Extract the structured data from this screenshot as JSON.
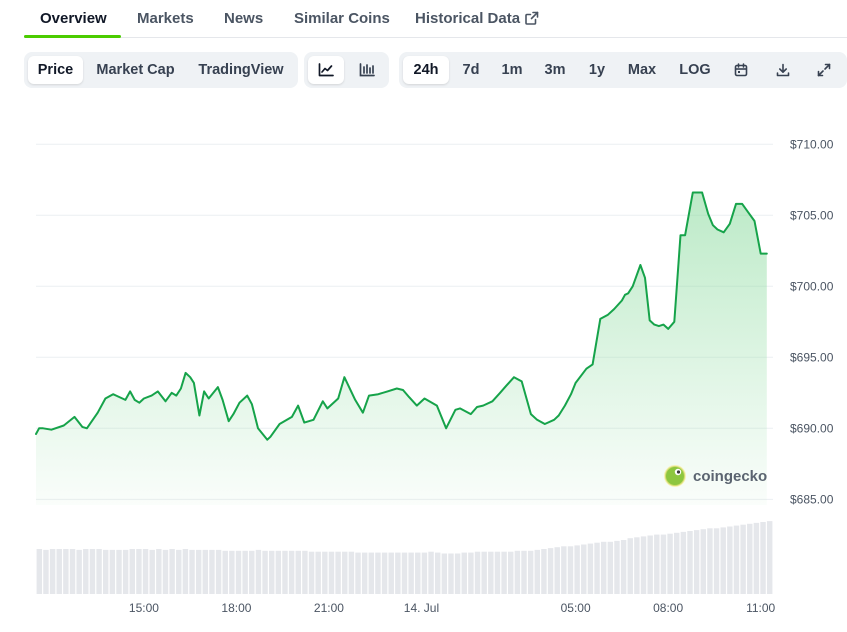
{
  "tabs": {
    "overview": "Overview",
    "markets": "Markets",
    "news": "News",
    "similar_coins": "Similar Coins",
    "historical_data": "Historical Data"
  },
  "toolbar": {
    "price": "Price",
    "market_cap": "Market Cap",
    "trading_view": "TradingView",
    "ranges": [
      "24h",
      "7d",
      "1m",
      "3m",
      "1y",
      "Max"
    ],
    "log": "LOG",
    "selected_range": "24h",
    "selected_view": "Price",
    "selected_chart_type": "line"
  },
  "icons": {
    "external": "external-link-icon",
    "line_chart": "line-chart-icon",
    "candlestick": "candlestick-icon",
    "calendar": "calendar-icon",
    "download": "download-icon",
    "fullscreen": "fullscreen-icon",
    "brand_logo": "coingecko-logo-icon"
  },
  "watermark": "coingecko",
  "colors": {
    "line": "#16a34a",
    "fill_top": "#86d99a",
    "accent_underline": "#4bcc00",
    "volume_bar": "#e5e7eb"
  },
  "chart_data": {
    "type": "area",
    "x_axis": {
      "type": "time",
      "tick_labels": [
        "15:00",
        "18:00",
        "21:00",
        "14. Jul",
        "05:00",
        "08:00",
        "11:00"
      ],
      "tick_hours": [
        15,
        18,
        21,
        24,
        29,
        32,
        35
      ],
      "range_hours": [
        11.5,
        35.4
      ]
    },
    "y_axis": {
      "tick_labels": [
        "$710.00",
        "$705.00",
        "$700.00",
        "$695.00",
        "$690.00",
        "$685.00"
      ],
      "tick_values": [
        710,
        705,
        700,
        695,
        690,
        685
      ],
      "ylim": [
        684.6,
        710.3
      ]
    },
    "grid": true,
    "series": [
      {
        "x": [
          11.5,
          11.6,
          11.73,
          12.0,
          12.4,
          12.75,
          13.0,
          13.15,
          13.5,
          13.75,
          14.0,
          14.1,
          14.4,
          14.55,
          14.7,
          14.85,
          15.0,
          15.25,
          15.45,
          15.7,
          15.9,
          16.05,
          16.2,
          16.35,
          16.5,
          16.62,
          16.8,
          16.95,
          17.1,
          17.4,
          17.55,
          17.75,
          17.9,
          18.1,
          18.35,
          18.5,
          18.7,
          19.0,
          19.1,
          19.4,
          19.8,
          20.0,
          20.2,
          20.5,
          20.8,
          20.95,
          21.3,
          21.5,
          21.85,
          22.1,
          22.3,
          22.6,
          22.9,
          23.2,
          23.4,
          23.6,
          23.85,
          24.1,
          24.5,
          24.8,
          25.1,
          25.25,
          25.6,
          25.8,
          26.0,
          26.3,
          26.55,
          26.75,
          27.0,
          27.25,
          27.55,
          27.75,
          28.0,
          28.1,
          28.3,
          28.45,
          28.65,
          28.85,
          29.0,
          29.35,
          29.55,
          29.8,
          30.05,
          30.25,
          30.5,
          30.6,
          30.7,
          30.85,
          31.1,
          31.25,
          31.4,
          31.55,
          31.7,
          31.85,
          32.0,
          32.2,
          32.4,
          32.55,
          32.8,
          33.1,
          33.3,
          33.45,
          33.6,
          33.8,
          34.0,
          34.2,
          34.4,
          34.6,
          34.8,
          35.0,
          35.2
        ],
        "y": [
          689.6,
          690.0,
          690.0,
          689.9,
          690.2,
          690.8,
          690.1,
          690.0,
          691.1,
          692.1,
          692.4,
          692.3,
          692.0,
          692.6,
          692.0,
          691.8,
          692.1,
          692.3,
          692.6,
          691.9,
          692.5,
          692.3,
          692.8,
          693.9,
          693.6,
          693.2,
          690.9,
          692.6,
          692.1,
          692.9,
          692.0,
          690.5,
          691.0,
          691.8,
          692.3,
          691.7,
          690.0,
          689.2,
          689.4,
          690.3,
          690.8,
          691.6,
          690.4,
          690.6,
          691.9,
          691.4,
          692.1,
          693.6,
          692.0,
          691.1,
          692.3,
          692.4,
          692.6,
          692.8,
          692.7,
          692.2,
          691.6,
          692.1,
          691.6,
          690.0,
          691.3,
          691.4,
          691.0,
          691.5,
          691.6,
          691.9,
          692.5,
          693.0,
          693.6,
          693.3,
          691.0,
          690.6,
          690.3,
          690.4,
          690.6,
          690.9,
          691.6,
          692.4,
          693.2,
          694.2,
          694.5,
          697.7,
          698.0,
          698.4,
          699.0,
          699.4,
          699.5,
          700.0,
          701.5,
          700.6,
          697.6,
          697.3,
          697.2,
          697.3,
          697.0,
          697.5,
          703.6,
          703.6,
          706.6,
          706.6,
          705.1,
          704.3,
          704.0,
          703.8,
          704.4,
          705.8,
          705.8,
          705.2,
          704.6,
          702.3,
          702.3
        ],
        "volume": [
          0.5,
          0.49,
          0.5,
          0.5,
          0.5,
          0.5,
          0.49,
          0.5,
          0.5,
          0.5,
          0.49,
          0.49,
          0.49,
          0.49,
          0.5,
          0.5,
          0.5,
          0.49,
          0.5,
          0.49,
          0.5,
          0.49,
          0.5,
          0.49,
          0.49,
          0.49,
          0.49,
          0.49,
          0.48,
          0.48,
          0.48,
          0.48,
          0.48,
          0.49,
          0.48,
          0.48,
          0.48,
          0.48,
          0.48,
          0.48,
          0.48,
          0.47,
          0.47,
          0.47,
          0.47,
          0.47,
          0.47,
          0.47,
          0.46,
          0.46,
          0.46,
          0.46,
          0.46,
          0.46,
          0.46,
          0.46,
          0.46,
          0.46,
          0.46,
          0.47,
          0.46,
          0.45,
          0.45,
          0.45,
          0.46,
          0.46,
          0.47,
          0.47,
          0.47,
          0.47,
          0.47,
          0.47,
          0.48,
          0.48,
          0.48,
          0.49,
          0.5,
          0.51,
          0.52,
          0.53,
          0.53,
          0.54,
          0.55,
          0.56,
          0.57,
          0.58,
          0.58,
          0.59,
          0.6,
          0.62,
          0.63,
          0.64,
          0.65,
          0.66,
          0.66,
          0.67,
          0.68,
          0.69,
          0.7,
          0.71,
          0.72,
          0.73,
          0.73,
          0.74,
          0.75,
          0.76,
          0.77,
          0.78,
          0.79,
          0.8,
          0.81
        ]
      }
    ]
  }
}
